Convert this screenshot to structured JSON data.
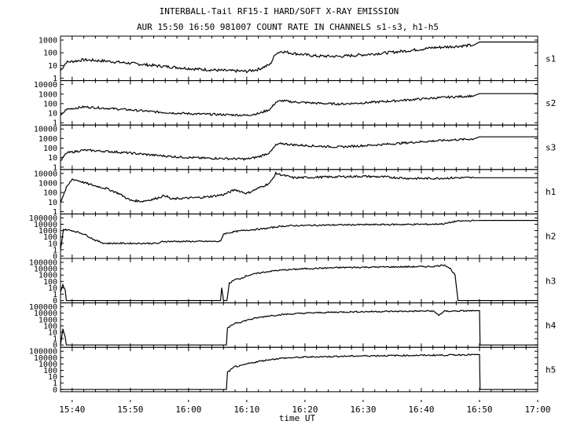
{
  "title_line1": "INTERBALL-Tail RF15-I HARD/SOFT X-RAY EMISSION",
  "title_line2": "AUR 15:50 16:50 981007  COUNT RATE IN CHANNELS s1-s3, h1-h5",
  "chart_data": {
    "type": "line",
    "title": "INTERBALL-Tail RF15-I HARD/SOFT X-RAY EMISSION",
    "subtitle": "AUR 15:50 16:50 981007  COUNT RATE IN CHANNELS s1-s3, h1-h5",
    "xlabel": "time UT",
    "x_unit": "minutes after 15:38 UT",
    "xlim": [
      0,
      82
    ],
    "x_ticks": [
      2,
      12,
      22,
      32,
      42,
      52,
      62,
      72,
      82
    ],
    "x_tick_labels": [
      "15:40",
      "15:50",
      "16:00",
      "16:10",
      "16:20",
      "16:30",
      "16:40",
      "16:50",
      "17:00"
    ],
    "yscale": "log",
    "grid": false,
    "panels": [
      {
        "name": "s1",
        "ylim": [
          1,
          1000
        ],
        "y_ticks": [
          1,
          10,
          100,
          1000
        ],
        "y_tick_labels": [
          "1",
          "10",
          "100",
          "1000"
        ],
        "points": [
          [
            0,
            4
          ],
          [
            1,
            18
          ],
          [
            4,
            28
          ],
          [
            8,
            22
          ],
          [
            12,
            15
          ],
          [
            16,
            10
          ],
          [
            20,
            7
          ],
          [
            24,
            5
          ],
          [
            28,
            4
          ],
          [
            32,
            3.5
          ],
          [
            34,
            5
          ],
          [
            36,
            12
          ],
          [
            37,
            90
          ],
          [
            38,
            130
          ],
          [
            40,
            90
          ],
          [
            44,
            55
          ],
          [
            48,
            52
          ],
          [
            52,
            70
          ],
          [
            56,
            100
          ],
          [
            60,
            150
          ],
          [
            64,
            250
          ],
          [
            68,
            320
          ],
          [
            71,
            400
          ],
          [
            72,
            700
          ],
          [
            75,
            700
          ],
          [
            82,
            700
          ]
        ]
      },
      {
        "name": "s2",
        "ylim": [
          1,
          10000
        ],
        "y_ticks": [
          1,
          10,
          100,
          1000,
          10000
        ],
        "y_tick_labels": [
          "1",
          "10",
          "100",
          "1000",
          "10000"
        ],
        "points": [
          [
            0,
            5
          ],
          [
            1,
            25
          ],
          [
            4,
            45
          ],
          [
            8,
            32
          ],
          [
            12,
            22
          ],
          [
            16,
            14
          ],
          [
            20,
            10
          ],
          [
            24,
            8
          ],
          [
            28,
            7
          ],
          [
            32,
            6
          ],
          [
            34,
            9
          ],
          [
            36,
            25
          ],
          [
            37,
            140
          ],
          [
            38,
            200
          ],
          [
            40,
            150
          ],
          [
            44,
            110
          ],
          [
            48,
            90
          ],
          [
            52,
            120
          ],
          [
            56,
            170
          ],
          [
            60,
            250
          ],
          [
            64,
            380
          ],
          [
            68,
            520
          ],
          [
            71,
            650
          ],
          [
            72,
            1100
          ],
          [
            75,
            1100
          ],
          [
            82,
            1100
          ]
        ]
      },
      {
        "name": "s3",
        "ylim": [
          1,
          10000
        ],
        "y_ticks": [
          1,
          10,
          100,
          1000,
          10000
        ],
        "y_tick_labels": [
          "1",
          "10",
          "100",
          "1000",
          "10000"
        ],
        "points": [
          [
            0,
            4
          ],
          [
            1,
            30
          ],
          [
            4,
            60
          ],
          [
            8,
            45
          ],
          [
            12,
            30
          ],
          [
            16,
            18
          ],
          [
            20,
            12
          ],
          [
            24,
            9
          ],
          [
            28,
            8
          ],
          [
            32,
            7
          ],
          [
            34,
            12
          ],
          [
            36,
            35
          ],
          [
            37,
            200
          ],
          [
            38,
            300
          ],
          [
            40,
            220
          ],
          [
            44,
            160
          ],
          [
            48,
            130
          ],
          [
            52,
            180
          ],
          [
            56,
            250
          ],
          [
            60,
            380
          ],
          [
            64,
            550
          ],
          [
            68,
            750
          ],
          [
            71,
            900
          ],
          [
            72,
            1500
          ],
          [
            75,
            1500
          ],
          [
            82,
            1500
          ]
        ]
      },
      {
        "name": "h1",
        "ylim": [
          1,
          10000
        ],
        "y_ticks": [
          1,
          10,
          100,
          1000,
          10000
        ],
        "y_tick_labels": [
          "1",
          "10",
          "100",
          "1000",
          "10000"
        ],
        "points": [
          [
            0,
            10
          ],
          [
            1,
            300
          ],
          [
            2,
            2500
          ],
          [
            3,
            1800
          ],
          [
            5,
            700
          ],
          [
            8,
            250
          ],
          [
            10,
            80
          ],
          [
            12,
            15
          ],
          [
            14,
            12
          ],
          [
            16,
            20
          ],
          [
            18,
            50
          ],
          [
            19,
            20
          ],
          [
            21,
            25
          ],
          [
            24,
            30
          ],
          [
            26,
            40
          ],
          [
            28,
            60
          ],
          [
            30,
            200
          ],
          [
            32,
            80
          ],
          [
            33,
            150
          ],
          [
            36,
            1000
          ],
          [
            37,
            10000
          ],
          [
            38,
            7000
          ],
          [
            40,
            3500
          ],
          [
            44,
            4000
          ],
          [
            48,
            4500
          ],
          [
            52,
            5000
          ],
          [
            56,
            4200
          ],
          [
            60,
            3000
          ],
          [
            64,
            3000
          ],
          [
            68,
            3500
          ],
          [
            72,
            3500
          ],
          [
            82,
            3500
          ]
        ]
      },
      {
        "name": "h2",
        "ylim": [
          0.1,
          100000
        ],
        "y_ticks": [
          0.1,
          1,
          10,
          100,
          1000,
          10000,
          100000
        ],
        "y_tick_labels": [
          "0",
          "1",
          "10",
          "100",
          "1000",
          "10000",
          "100000"
        ],
        "points": [
          [
            0,
            1
          ],
          [
            0.5,
            1500
          ],
          [
            2,
            1000
          ],
          [
            4,
            300
          ],
          [
            6,
            30
          ],
          [
            7.5,
            10
          ],
          [
            8,
            10
          ],
          [
            17,
            10
          ],
          [
            17.5,
            20
          ],
          [
            27.5,
            20
          ],
          [
            28,
            300
          ],
          [
            30,
            700
          ],
          [
            32,
            1200
          ],
          [
            35,
            2000
          ],
          [
            38,
            5000
          ],
          [
            40,
            6000
          ],
          [
            48,
            8000
          ],
          [
            56,
            9000
          ],
          [
            64,
            10000
          ],
          [
            66,
            12000
          ],
          [
            68,
            30000
          ],
          [
            72,
            40000
          ],
          [
            75,
            40000
          ],
          [
            82,
            40000
          ]
        ]
      },
      {
        "name": "h3",
        "ylim": [
          0.1,
          100000
        ],
        "y_ticks": [
          0.1,
          1,
          10,
          100,
          1000,
          10000,
          100000
        ],
        "y_tick_labels": [
          "0",
          "1",
          "10",
          "100",
          "1000",
          "10000",
          "100000"
        ],
        "points": [
          [
            0,
            2
          ],
          [
            0.4,
            30
          ],
          [
            0.8,
            5
          ],
          [
            1,
            0.1
          ],
          [
            27.5,
            0.1
          ],
          [
            27.7,
            10
          ],
          [
            28,
            0.1
          ],
          [
            28.6,
            0.1
          ],
          [
            29,
            50
          ],
          [
            30,
            200
          ],
          [
            31,
            300
          ],
          [
            32,
            800
          ],
          [
            34,
            2000
          ],
          [
            36,
            4000
          ],
          [
            38,
            6000
          ],
          [
            42,
            10000
          ],
          [
            48,
            15000
          ],
          [
            54,
            18000
          ],
          [
            60,
            20000
          ],
          [
            64,
            22000
          ],
          [
            66,
            40000
          ],
          [
            67,
            10000
          ],
          [
            67.8,
            1000
          ],
          [
            68.3,
            0.1
          ],
          [
            82,
            0.1
          ]
        ]
      },
      {
        "name": "h4",
        "ylim": [
          0.1,
          100000
        ],
        "y_ticks": [
          0.1,
          1,
          10,
          100,
          1000,
          10000,
          100000
        ],
        "y_tick_labels": [
          "0",
          "1",
          "10",
          "100",
          "1000",
          "10000",
          "100000"
        ],
        "points": [
          [
            0,
            0.1
          ],
          [
            0.4,
            30
          ],
          [
            0.8,
            2
          ],
          [
            1,
            0.1
          ],
          [
            28.5,
            0.1
          ],
          [
            28.7,
            40
          ],
          [
            30,
            300
          ],
          [
            31,
            400
          ],
          [
            32,
            800
          ],
          [
            34,
            2000
          ],
          [
            36,
            4000
          ],
          [
            38,
            6000
          ],
          [
            42,
            10000
          ],
          [
            48,
            15000
          ],
          [
            54,
            18000
          ],
          [
            60,
            20000
          ],
          [
            64,
            22000
          ],
          [
            65,
            5000
          ],
          [
            66,
            20000
          ],
          [
            72,
            25000
          ],
          [
            72.1,
            0.1
          ],
          [
            82,
            0.1
          ]
        ]
      },
      {
        "name": "h5",
        "ylim": [
          0.1,
          100000
        ],
        "y_ticks": [
          0.1,
          1,
          10,
          100,
          1000,
          10000,
          100000
        ],
        "y_tick_labels": [
          "0",
          "1",
          "10",
          "100",
          "1000",
          "10000",
          "100000"
        ],
        "points": [
          [
            0,
            0.1
          ],
          [
            28.5,
            0.1
          ],
          [
            28.7,
            50
          ],
          [
            30,
            400
          ],
          [
            31,
            500
          ],
          [
            32,
            1000
          ],
          [
            34,
            2500
          ],
          [
            36,
            5000
          ],
          [
            38,
            8000
          ],
          [
            42,
            12000
          ],
          [
            48,
            16000
          ],
          [
            54,
            20000
          ],
          [
            60,
            22000
          ],
          [
            66,
            25000
          ],
          [
            71,
            30000
          ],
          [
            72,
            30000
          ],
          [
            72.1,
            0.1
          ],
          [
            82,
            0.1
          ]
        ]
      }
    ]
  }
}
